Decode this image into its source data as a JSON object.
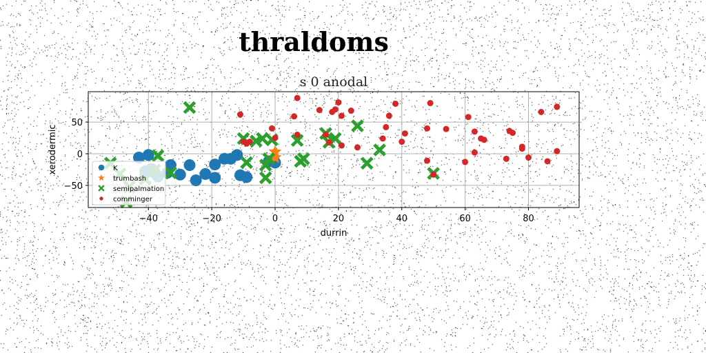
{
  "figure": {
    "suptitle": "thraldoms"
  },
  "chart_data": {
    "type": "scatter",
    "title": "s 0 anodal",
    "xlabel": "durrin",
    "ylabel": "xerodermic",
    "xlim": [
      -59,
      96
    ],
    "ylim": [
      -85,
      98
    ],
    "xticks": [
      -40,
      -20,
      0,
      20,
      40,
      60,
      80
    ],
    "yticks": [
      -50,
      0,
      50
    ],
    "xtick_labels": [
      "−40",
      "−20",
      "0",
      "20",
      "40",
      "60",
      "80"
    ],
    "ytick_labels": [
      "−50",
      "0",
      "50"
    ],
    "grid": true,
    "legend_position": "lower-left",
    "series": [
      {
        "name": "K",
        "color": "#1f77b4",
        "marker": "circle",
        "points": [
          [
            -43,
            -6
          ],
          [
            -41,
            -28
          ],
          [
            -40,
            -2
          ],
          [
            -39,
            -24
          ],
          [
            -38,
            -30
          ],
          [
            -37,
            -36
          ],
          [
            -34,
            -30
          ],
          [
            -33,
            -18
          ],
          [
            -30,
            -33
          ],
          [
            -27,
            -18
          ],
          [
            -25,
            -42
          ],
          [
            -22,
            -32
          ],
          [
            -19,
            -17
          ],
          [
            -19,
            -38
          ],
          [
            -16,
            -8
          ],
          [
            -14,
            -8
          ],
          [
            -12,
            -2
          ],
          [
            -11,
            -34
          ],
          [
            -9,
            -37
          ],
          [
            0,
            -14
          ],
          [
            -2,
            -12
          ]
        ]
      },
      {
        "name": "trumbash",
        "color": "#ff7f0e",
        "marker": "star",
        "points": [
          [
            0,
            3
          ],
          [
            0,
            -6
          ]
        ]
      },
      {
        "name": "semipalmation",
        "color": "#2ca02c",
        "marker": "x",
        "points": [
          [
            -52,
            -15
          ],
          [
            -49,
            -32
          ],
          [
            -47,
            -76
          ],
          [
            -46,
            -52
          ],
          [
            -41,
            -40
          ],
          [
            -38,
            -26
          ],
          [
            -37,
            -3
          ],
          [
            -33,
            -30
          ],
          [
            -27,
            73
          ],
          [
            -10,
            24
          ],
          [
            -9,
            -14
          ],
          [
            -6,
            20
          ],
          [
            -4,
            24
          ],
          [
            -3,
            -38
          ],
          [
            -3,
            -18
          ],
          [
            -2,
            -8
          ],
          [
            -1,
            22
          ],
          [
            7,
            21
          ],
          [
            8,
            -12
          ],
          [
            9,
            -8
          ],
          [
            16,
            32
          ],
          [
            17,
            18
          ],
          [
            19,
            24
          ],
          [
            26,
            44
          ],
          [
            29,
            -15
          ],
          [
            33,
            6
          ],
          [
            50,
            -31
          ]
        ]
      },
      {
        "name": "comminger",
        "color": "#d62728",
        "marker": "dot",
        "points": [
          [
            -11,
            62
          ],
          [
            -10,
            19
          ],
          [
            -9,
            16
          ],
          [
            -8,
            19
          ],
          [
            -1,
            40
          ],
          [
            0,
            25
          ],
          [
            6,
            59
          ],
          [
            7,
            88
          ],
          [
            7,
            30
          ],
          [
            14,
            69
          ],
          [
            16,
            30
          ],
          [
            17,
            18
          ],
          [
            18,
            66
          ],
          [
            19,
            70
          ],
          [
            20,
            81
          ],
          [
            21,
            60
          ],
          [
            21,
            13
          ],
          [
            24,
            68
          ],
          [
            26,
            10
          ],
          [
            34,
            24
          ],
          [
            35,
            42
          ],
          [
            36,
            60
          ],
          [
            38,
            79
          ],
          [
            40,
            19
          ],
          [
            41,
            32
          ],
          [
            48,
            40
          ],
          [
            48,
            -11
          ],
          [
            49,
            80
          ],
          [
            50,
            -33
          ],
          [
            54,
            39
          ],
          [
            60,
            -13
          ],
          [
            61,
            58
          ],
          [
            63,
            35
          ],
          [
            63,
            2
          ],
          [
            65,
            24
          ],
          [
            66,
            22
          ],
          [
            73,
            -8
          ],
          [
            74,
            36
          ],
          [
            75,
            33
          ],
          [
            78,
            11
          ],
          [
            78,
            8
          ],
          [
            80,
            -6
          ],
          [
            84,
            66
          ],
          [
            86,
            -12
          ],
          [
            89,
            74
          ],
          [
            89,
            4
          ]
        ]
      }
    ]
  }
}
